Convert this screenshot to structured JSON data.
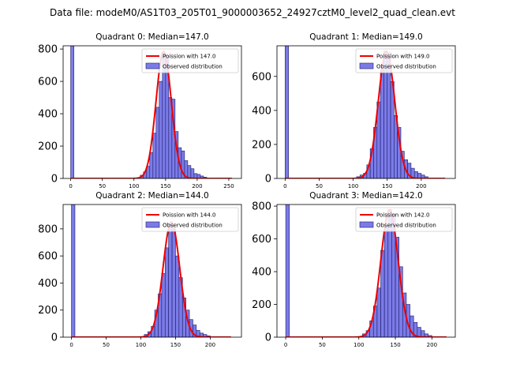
{
  "colors": {
    "poisson": "#ee0000",
    "bar_fill": "#7b7be8",
    "bar_edge": "#1a1a66",
    "axis": "#000000",
    "legend_border": "#cccccc"
  },
  "chart_data": {
    "type": "bar",
    "suptitle": "Data file: modeM0/AS1T03_205T01_9000003652_24927cztM0_level2_quad_clean.evt",
    "legend_placement": "top-right",
    "panels": [
      {
        "title": "Quadrant 0: Median=147.0",
        "median": 147.0,
        "xlim": [
          -12,
          270
        ],
        "ylim": [
          0,
          820
        ],
        "xticks": [
          0,
          50,
          100,
          150,
          200,
          250
        ],
        "yticks": [
          0,
          200,
          400,
          600,
          800
        ],
        "bin_width": 5,
        "bars": [
          {
            "x": 0,
            "y": 820
          },
          {
            "x": 110,
            "y": 20
          },
          {
            "x": 115,
            "y": 40
          },
          {
            "x": 120,
            "y": 75
          },
          {
            "x": 125,
            "y": 160
          },
          {
            "x": 130,
            "y": 280
          },
          {
            "x": 135,
            "y": 440
          },
          {
            "x": 140,
            "y": 600
          },
          {
            "x": 145,
            "y": 770
          },
          {
            "x": 150,
            "y": 760
          },
          {
            "x": 155,
            "y": 500
          },
          {
            "x": 160,
            "y": 490
          },
          {
            "x": 165,
            "y": 290
          },
          {
            "x": 170,
            "y": 190
          },
          {
            "x": 175,
            "y": 170
          },
          {
            "x": 180,
            "y": 110
          },
          {
            "x": 185,
            "y": 80
          },
          {
            "x": 190,
            "y": 60
          },
          {
            "x": 195,
            "y": 30
          },
          {
            "x": 200,
            "y": 25
          },
          {
            "x": 205,
            "y": 15
          },
          {
            "x": 210,
            "y": 8
          }
        ],
        "poisson_peak": 785,
        "poisson_x_range": [
          0,
          255
        ],
        "legend": [
          "Poission with 147.0",
          "Observed distribution"
        ]
      },
      {
        "title": "Quadrant 1: Median=149.0",
        "median": 149.0,
        "xlim": [
          -12,
          250
        ],
        "ylim": [
          0,
          780
        ],
        "xticks": [
          0,
          50,
          100,
          150,
          200
        ],
        "yticks": [
          0,
          200,
          400,
          600
        ],
        "bin_width": 5,
        "bars": [
          {
            "x": 0,
            "y": 780
          },
          {
            "x": 105,
            "y": 10
          },
          {
            "x": 110,
            "y": 20
          },
          {
            "x": 115,
            "y": 30
          },
          {
            "x": 120,
            "y": 80
          },
          {
            "x": 125,
            "y": 175
          },
          {
            "x": 130,
            "y": 300
          },
          {
            "x": 135,
            "y": 450
          },
          {
            "x": 140,
            "y": 640
          },
          {
            "x": 145,
            "y": 750
          },
          {
            "x": 150,
            "y": 740
          },
          {
            "x": 155,
            "y": 570
          },
          {
            "x": 160,
            "y": 370
          },
          {
            "x": 165,
            "y": 300
          },
          {
            "x": 170,
            "y": 160
          },
          {
            "x": 175,
            "y": 110
          },
          {
            "x": 180,
            "y": 90
          },
          {
            "x": 185,
            "y": 60
          },
          {
            "x": 190,
            "y": 40
          },
          {
            "x": 195,
            "y": 30
          },
          {
            "x": 200,
            "y": 20
          },
          {
            "x": 205,
            "y": 10
          }
        ],
        "poisson_peak": 745,
        "poisson_x_range": [
          0,
          235
        ],
        "legend": [
          "Poission with 149.0",
          "Observed distribution"
        ]
      },
      {
        "title": "Quadrant 2: Median=144.0",
        "median": 144.0,
        "xlim": [
          -12,
          245
        ],
        "ylim": [
          0,
          980
        ],
        "xticks": [
          0,
          50,
          100,
          150,
          200
        ],
        "yticks": [
          0,
          200,
          400,
          600,
          800
        ],
        "bin_width": 5,
        "bars": [
          {
            "x": 0,
            "y": 980
          },
          {
            "x": 105,
            "y": 20
          },
          {
            "x": 110,
            "y": 40
          },
          {
            "x": 115,
            "y": 80
          },
          {
            "x": 120,
            "y": 200
          },
          {
            "x": 125,
            "y": 320
          },
          {
            "x": 130,
            "y": 470
          },
          {
            "x": 135,
            "y": 660
          },
          {
            "x": 140,
            "y": 830
          },
          {
            "x": 145,
            "y": 800
          },
          {
            "x": 150,
            "y": 600
          },
          {
            "x": 155,
            "y": 440
          },
          {
            "x": 160,
            "y": 290
          },
          {
            "x": 165,
            "y": 200
          },
          {
            "x": 170,
            "y": 130
          },
          {
            "x": 175,
            "y": 90
          },
          {
            "x": 180,
            "y": 50
          },
          {
            "x": 185,
            "y": 30
          },
          {
            "x": 190,
            "y": 20
          },
          {
            "x": 195,
            "y": 10
          }
        ],
        "poisson_peak": 850,
        "poisson_x_range": [
          0,
          230
        ],
        "legend": [
          "Poission with 144.0",
          "Observed distribution"
        ]
      },
      {
        "title": "Quadrant 3: Median=142.0",
        "median": 142.0,
        "xlim": [
          -12,
          232
        ],
        "ylim": [
          0,
          810
        ],
        "xticks": [
          0,
          50,
          100,
          150,
          200
        ],
        "yticks": [
          0,
          200,
          400,
          600,
          800
        ],
        "bin_width": 5,
        "bars": [
          {
            "x": 0,
            "y": 810
          },
          {
            "x": 105,
            "y": 20
          },
          {
            "x": 110,
            "y": 40
          },
          {
            "x": 115,
            "y": 100
          },
          {
            "x": 120,
            "y": 190
          },
          {
            "x": 125,
            "y": 300
          },
          {
            "x": 130,
            "y": 530
          },
          {
            "x": 135,
            "y": 670
          },
          {
            "x": 140,
            "y": 780
          },
          {
            "x": 145,
            "y": 750
          },
          {
            "x": 150,
            "y": 610
          },
          {
            "x": 155,
            "y": 430
          },
          {
            "x": 160,
            "y": 270
          },
          {
            "x": 165,
            "y": 200
          },
          {
            "x": 170,
            "y": 130
          },
          {
            "x": 175,
            "y": 90
          },
          {
            "x": 180,
            "y": 60
          },
          {
            "x": 185,
            "y": 40
          },
          {
            "x": 190,
            "y": 20
          },
          {
            "x": 195,
            "y": 10
          }
        ],
        "poisson_peak": 775,
        "poisson_x_range": [
          0,
          220
        ],
        "legend": [
          "Poission with 142.0",
          "Observed distribution"
        ]
      }
    ]
  }
}
